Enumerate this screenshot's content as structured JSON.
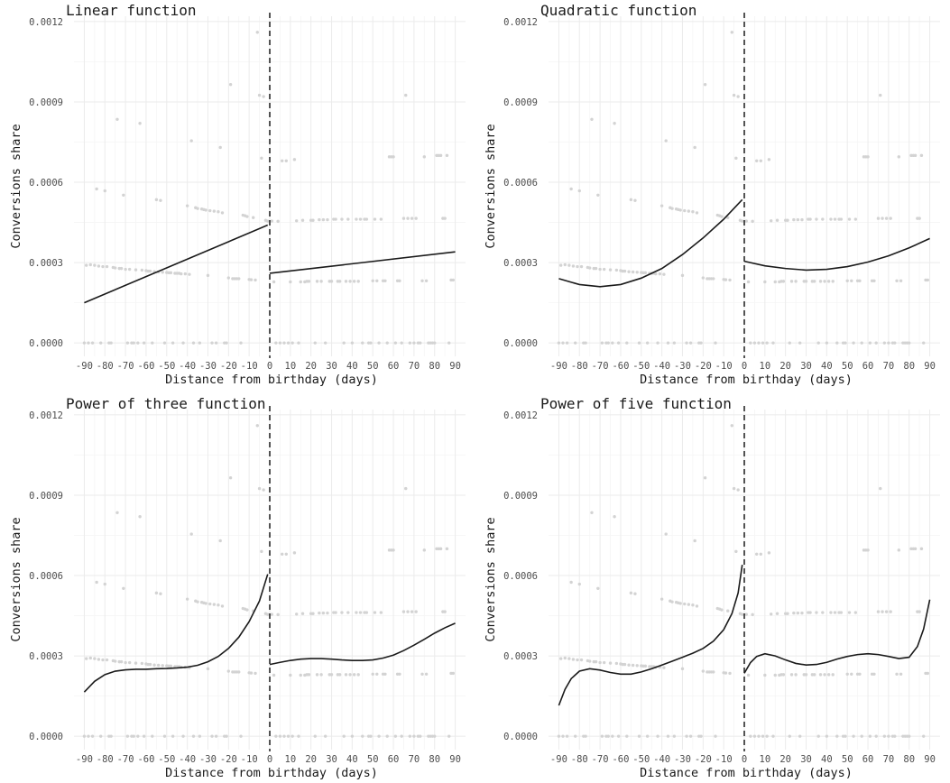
{
  "chart_data": {
    "type": "scatter",
    "xlabel": "Distance from birthday (days)",
    "ylabel": "Conversions share",
    "xlim": [
      -95,
      95
    ],
    "ylim": [
      -5e-05,
      0.00122
    ],
    "x_ticks": [
      -90,
      -80,
      -70,
      -60,
      -50,
      -40,
      -30,
      -20,
      -10,
      0,
      10,
      20,
      30,
      40,
      50,
      60,
      70,
      80,
      90
    ],
    "y_ticks": [
      0,
      0.0003,
      0.0006,
      0.0009,
      0.0012
    ],
    "y_tick_labels": [
      "0.0000",
      "0.0003",
      "0.0006",
      "0.0009",
      "0.0012"
    ],
    "cutoff_x": 0,
    "grid": true,
    "point_color": "#d3d3d3",
    "line_color": "#1a1a1a",
    "points": [
      [
        -90,
        0
      ],
      [
        -89,
        0.00029
      ],
      [
        -88,
        0
      ],
      [
        -87,
        0.000292
      ],
      [
        -86,
        0
      ],
      [
        -85,
        0.00029
      ],
      [
        -84,
        0.000575
      ],
      [
        -83,
        0.000287
      ],
      [
        -82,
        0
      ],
      [
        -81,
        0.000285
      ],
      [
        -80,
        0.000568
      ],
      [
        -79,
        0.000285
      ],
      [
        -78,
        0
      ],
      [
        -77,
        0
      ],
      [
        -76,
        0.000282
      ],
      [
        -75,
        0.00028
      ],
      [
        -74,
        0.000835
      ],
      [
        -73,
        0.000278
      ],
      [
        -72,
        0.000278
      ],
      [
        -71,
        0.000552
      ],
      [
        -70,
        0.000275
      ],
      [
        -69,
        0
      ],
      [
        -68,
        0.000275
      ],
      [
        -67,
        0
      ],
      [
        -66,
        0
      ],
      [
        -65,
        0.000273
      ],
      [
        -64,
        0
      ],
      [
        -63,
        0.00082
      ],
      [
        -62,
        0.000272
      ],
      [
        -61,
        0
      ],
      [
        -60,
        0.00027
      ],
      [
        -59,
        0.000268
      ],
      [
        -58,
        0.000268
      ],
      [
        -57,
        0
      ],
      [
        -56,
        0.000266
      ],
      [
        -55,
        0.000535
      ],
      [
        -54,
        0.000265
      ],
      [
        -53,
        0.000532
      ],
      [
        -52,
        0.000264
      ],
      [
        -51,
        0
      ],
      [
        -50,
        0.000263
      ],
      [
        -49,
        0.000262
      ],
      [
        -48,
        0.000262
      ],
      [
        -47,
        0
      ],
      [
        -46,
        0.00026
      ],
      [
        -45,
        0.00026
      ],
      [
        -44,
        0.00026
      ],
      [
        -43,
        0.000258
      ],
      [
        -42,
        0
      ],
      [
        -41,
        0.000258
      ],
      [
        -40,
        0.000512
      ],
      [
        -39,
        0.000256
      ],
      [
        -38,
        0.000755
      ],
      [
        -37,
        0
      ],
      [
        -36,
        0.000505
      ],
      [
        -35,
        0.000502
      ],
      [
        -34,
        0
      ],
      [
        -33,
        0.0005
      ],
      [
        -32,
        0.000498
      ],
      [
        -31,
        0.000496
      ],
      [
        -30,
        0.000252
      ],
      [
        -29,
        0.000494
      ],
      [
        -28,
        0
      ],
      [
        -27,
        0.000492
      ],
      [
        -26,
        0
      ],
      [
        -25,
        0.00049
      ],
      [
        -24,
        0.00073
      ],
      [
        -23,
        0.000486
      ],
      [
        -22,
        0
      ],
      [
        -21,
        0
      ],
      [
        -20,
        0.000243
      ],
      [
        -19,
        0.000965
      ],
      [
        -18,
        0.00024
      ],
      [
        -17,
        0.00024
      ],
      [
        -16,
        0.00024
      ],
      [
        -15,
        0.00024
      ],
      [
        -14,
        0
      ],
      [
        -13,
        0.000477
      ],
      [
        -12,
        0.000475
      ],
      [
        -11,
        0.000472
      ],
      [
        -10,
        0.000237
      ],
      [
        -9,
        0.000236
      ],
      [
        -8,
        0.000468
      ],
      [
        -7,
        0.000235
      ],
      [
        -6,
        0.00116
      ],
      [
        -5,
        0.000925
      ],
      [
        -4,
        0.00069
      ],
      [
        -3,
        0.00092
      ],
      [
        -2,
        0.000458
      ],
      [
        -1,
        0.000455
      ],
      [
        1,
        0.000455
      ],
      [
        2,
        0.000228
      ],
      [
        3,
        0
      ],
      [
        4,
        0.000454
      ],
      [
        5,
        0
      ],
      [
        6,
        0.00068
      ],
      [
        7,
        0
      ],
      [
        8,
        0.00068
      ],
      [
        9,
        0
      ],
      [
        10,
        0.000228
      ],
      [
        11,
        0
      ],
      [
        12,
        0.000685
      ],
      [
        13,
        0.000456
      ],
      [
        14,
        0
      ],
      [
        15,
        0.000228
      ],
      [
        16,
        0.000458
      ],
      [
        17,
        0.000228
      ],
      [
        18,
        0.00023
      ],
      [
        19,
        0.00023
      ],
      [
        20,
        0.000458
      ],
      [
        21,
        0.000458
      ],
      [
        22,
        0
      ],
      [
        23,
        0.00023
      ],
      [
        24,
        0.00046
      ],
      [
        25,
        0.00023
      ],
      [
        26,
        0.00046
      ],
      [
        27,
        0
      ],
      [
        28,
        0.00046
      ],
      [
        29,
        0.00023
      ],
      [
        30,
        0.00023
      ],
      [
        31,
        0.000462
      ],
      [
        32,
        0.000462
      ],
      [
        33,
        0.00023
      ],
      [
        34,
        0.00023
      ],
      [
        35,
        0.000462
      ],
      [
        36,
        0
      ],
      [
        37,
        0.00023
      ],
      [
        38,
        0.000462
      ],
      [
        39,
        0.00023
      ],
      [
        40,
        0
      ],
      [
        41,
        0.00023
      ],
      [
        42,
        0.000462
      ],
      [
        43,
        0.00023
      ],
      [
        44,
        0.000462
      ],
      [
        45,
        0
      ],
      [
        46,
        0.000462
      ],
      [
        47,
        0.000462
      ],
      [
        48,
        0
      ],
      [
        49,
        0
      ],
      [
        50,
        0.000232
      ],
      [
        51,
        0.000462
      ],
      [
        52,
        0.000232
      ],
      [
        53,
        0
      ],
      [
        54,
        0.000462
      ],
      [
        55,
        0.000232
      ],
      [
        56,
        0.000232
      ],
      [
        57,
        0
      ],
      [
        58,
        0.000695
      ],
      [
        59,
        0.000695
      ],
      [
        60,
        0.000695
      ],
      [
        61,
        0
      ],
      [
        62,
        0.000232
      ],
      [
        63,
        0.000232
      ],
      [
        64,
        0
      ],
      [
        65,
        0.000465
      ],
      [
        66,
        0.000925
      ],
      [
        67,
        0.000465
      ],
      [
        68,
        0
      ],
      [
        69,
        0.000465
      ],
      [
        70,
        0
      ],
      [
        71,
        0.000465
      ],
      [
        72,
        0
      ],
      [
        73,
        0
      ],
      [
        74,
        0.000232
      ],
      [
        75,
        0.000695
      ],
      [
        76,
        0.000232
      ],
      [
        77,
        0
      ],
      [
        78,
        0
      ],
      [
        79,
        0
      ],
      [
        80,
        0
      ],
      [
        81,
        0.0007
      ],
      [
        82,
        0.0007
      ],
      [
        83,
        0.0007
      ],
      [
        84,
        0.000465
      ],
      [
        85,
        0.000465
      ],
      [
        86,
        0.0007
      ],
      [
        87,
        0
      ],
      [
        88,
        0.000235
      ],
      [
        89,
        0.000235
      ]
    ],
    "panels": [
      {
        "title": "Linear function",
        "left": [
          [
            -90,
            0.00015
          ],
          [
            -1,
            0.00044
          ]
        ],
        "right": [
          [
            0,
            0.00026
          ],
          [
            90,
            0.00034
          ]
        ]
      },
      {
        "title": "Quadratic function",
        "left": [
          [
            -90,
            0.00024
          ],
          [
            -80,
            0.000218
          ],
          [
            -70,
            0.00021
          ],
          [
            -60,
            0.000218
          ],
          [
            -50,
            0.000242
          ],
          [
            -40,
            0.000278
          ],
          [
            -30,
            0.00033
          ],
          [
            -20,
            0.000392
          ],
          [
            -10,
            0.000462
          ],
          [
            -1,
            0.000535
          ]
        ],
        "right": [
          [
            0,
            0.000305
          ],
          [
            10,
            0.000288
          ],
          [
            20,
            0.000278
          ],
          [
            30,
            0.000272
          ],
          [
            40,
            0.000275
          ],
          [
            50,
            0.000285
          ],
          [
            60,
            0.000302
          ],
          [
            70,
            0.000325
          ],
          [
            80,
            0.000355
          ],
          [
            90,
            0.00039
          ]
        ]
      },
      {
        "title": "Power of three function",
        "left": [
          [
            -90,
            0.000165
          ],
          [
            -85,
            0.000205
          ],
          [
            -80,
            0.00023
          ],
          [
            -75,
            0.000243
          ],
          [
            -70,
            0.000248
          ],
          [
            -65,
            0.00025
          ],
          [
            -60,
            0.00025
          ],
          [
            -55,
            0.000252
          ],
          [
            -50,
            0.000253
          ],
          [
            -45,
            0.000255
          ],
          [
            -40,
            0.000258
          ],
          [
            -35,
            0.000265
          ],
          [
            -30,
            0.000278
          ],
          [
            -25,
            0.000298
          ],
          [
            -20,
            0.000328
          ],
          [
            -15,
            0.00037
          ],
          [
            -10,
            0.000428
          ],
          [
            -5,
            0.000505
          ],
          [
            -1,
            0.000605
          ]
        ],
        "right": [
          [
            0,
            0.000268
          ],
          [
            5,
            0.000276
          ],
          [
            10,
            0.000283
          ],
          [
            15,
            0.000288
          ],
          [
            20,
            0.00029
          ],
          [
            25,
            0.00029
          ],
          [
            30,
            0.000288
          ],
          [
            35,
            0.000285
          ],
          [
            40,
            0.000283
          ],
          [
            45,
            0.000283
          ],
          [
            50,
            0.000285
          ],
          [
            55,
            0.000292
          ],
          [
            60,
            0.000303
          ],
          [
            65,
            0.00032
          ],
          [
            70,
            0.00034
          ],
          [
            75,
            0.000362
          ],
          [
            80,
            0.000385
          ],
          [
            85,
            0.000405
          ],
          [
            90,
            0.000422
          ]
        ]
      },
      {
        "title": "Power of five function",
        "left": [
          [
            -90,
            0.000115
          ],
          [
            -87,
            0.000175
          ],
          [
            -84,
            0.000215
          ],
          [
            -80,
            0.000243
          ],
          [
            -75,
            0.000252
          ],
          [
            -70,
            0.000247
          ],
          [
            -65,
            0.000238
          ],
          [
            -60,
            0.000232
          ],
          [
            -55,
            0.000232
          ],
          [
            -50,
            0.00024
          ],
          [
            -45,
            0.000252
          ],
          [
            -40,
            0.000266
          ],
          [
            -35,
            0.00028
          ],
          [
            -30,
            0.000295
          ],
          [
            -25,
            0.00031
          ],
          [
            -20,
            0.000328
          ],
          [
            -15,
            0.000355
          ],
          [
            -10,
            0.000398
          ],
          [
            -6,
            0.000458
          ],
          [
            -3,
            0.000535
          ],
          [
            -1,
            0.00064
          ]
        ],
        "right": [
          [
            0,
            0.000235
          ],
          [
            3,
            0.000275
          ],
          [
            6,
            0.000298
          ],
          [
            10,
            0.000308
          ],
          [
            15,
            0.0003
          ],
          [
            20,
            0.000285
          ],
          [
            25,
            0.000272
          ],
          [
            30,
            0.000266
          ],
          [
            35,
            0.000268
          ],
          [
            40,
            0.000276
          ],
          [
            45,
            0.000288
          ],
          [
            50,
            0.000298
          ],
          [
            55,
            0.000305
          ],
          [
            60,
            0.000308
          ],
          [
            65,
            0.000305
          ],
          [
            70,
            0.000298
          ],
          [
            75,
            0.00029
          ],
          [
            80,
            0.000295
          ],
          [
            84,
            0.000335
          ],
          [
            87,
            0.0004
          ],
          [
            90,
            0.00051
          ]
        ]
      }
    ]
  }
}
